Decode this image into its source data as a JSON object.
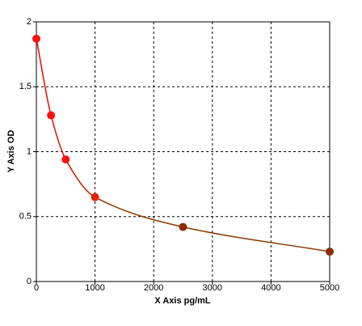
{
  "chart_data": {
    "type": "scatter",
    "x_label": "X Axis pg/mL",
    "y_label": "Y Axis OD",
    "x": [
      0,
      250,
      500,
      1000,
      2500,
      5000
    ],
    "series": [
      {
        "values": [
          1.87,
          1.28,
          0.94,
          0.65,
          0.42,
          0.23
        ],
        "point_colors": [
          "#ff1010",
          "#ff1010",
          "#ff1010",
          "#e8200a",
          "#8b2e00",
          "#8b2e00"
        ]
      }
    ],
    "curve_colors": [
      "#ff0000",
      "#8b3a00"
    ],
    "xlim": [
      0,
      5000
    ],
    "xticks": [
      0,
      1000,
      2000,
      3000,
      4000,
      5000
    ],
    "ylim": [
      0,
      2
    ],
    "yticks": [
      0,
      0.5,
      1,
      1.5,
      2
    ],
    "grid": true
  }
}
